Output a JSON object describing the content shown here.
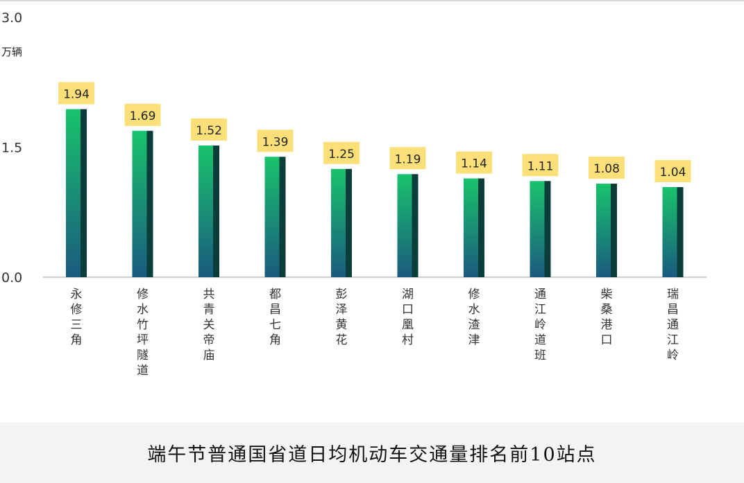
{
  "caption": "端午节普通国省道日均机动车交通量排名前10站点",
  "colors": {
    "bar_top": "#19c36c",
    "bar_bottom": "#1a5a7e",
    "bar_side": "#0b3d3a",
    "label_box": "#fbe07a",
    "axis": "#cfcfcf",
    "footer_bg": "#f3f3f3"
  },
  "chart_data": {
    "type": "bar",
    "title": "",
    "xlabel": "",
    "ylabel": "万辆",
    "ylim": [
      0,
      3.0
    ],
    "yticks": [
      "0.0",
      "1.5",
      "3.0"
    ],
    "grid": false,
    "categories": [
      "永修三角",
      "修水竹坪隧道",
      "共青关帝庙",
      "都昌七角",
      "彭泽黄花",
      "湖口凰村",
      "修水渣津",
      "通江岭道班",
      "柴桑港口",
      "瑞昌通江岭"
    ],
    "values": [
      1.94,
      1.69,
      1.52,
      1.39,
      1.25,
      1.19,
      1.14,
      1.11,
      1.08,
      1.04
    ],
    "value_labels": [
      "1.94",
      "1.69",
      "1.52",
      "1.39",
      "1.25",
      "1.19",
      "1.14",
      "1.11",
      "1.08",
      "1.04"
    ]
  }
}
